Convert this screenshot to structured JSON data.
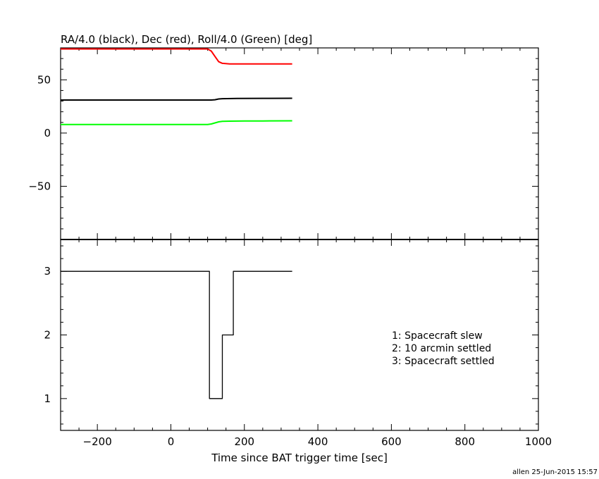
{
  "chart_data": [
    {
      "type": "line",
      "title": "RA/4.0 (black), Dec (red), Roll/4.0 (Green) [deg]",
      "xlim": [
        -300,
        1000
      ],
      "ylim": [
        -100,
        80
      ],
      "yticks": [
        -50,
        0,
        50
      ],
      "series": [
        {
          "color": "#000000",
          "x": [
            -300,
            100,
            110,
            120,
            130,
            140,
            180,
            250,
            330
          ],
          "y": [
            31,
            31,
            31,
            31.3,
            32,
            32.3,
            32.5,
            32.6,
            32.7
          ]
        },
        {
          "color": "#ff0000",
          "x": [
            -300,
            100,
            110,
            120,
            130,
            140,
            160,
            200,
            250,
            330
          ],
          "y": [
            79,
            79,
            77,
            72,
            67,
            65.5,
            65,
            65,
            65,
            65
          ]
        },
        {
          "color": "#00ff00",
          "x": [
            -300,
            100,
            110,
            120,
            130,
            140,
            160,
            200,
            250,
            330
          ],
          "y": [
            8,
            8,
            8.5,
            9.5,
            10.5,
            11,
            11.2,
            11.3,
            11.4,
            11.5
          ]
        }
      ]
    },
    {
      "type": "line",
      "xlabel": "Time since BAT trigger time [sec]",
      "xlim": [
        -300,
        1000
      ],
      "xticks": [
        -200,
        0,
        200,
        400,
        600,
        800,
        1000
      ],
      "ylim": [
        0.5,
        3.5
      ],
      "yticks": [
        1,
        2,
        3
      ],
      "series": [
        {
          "color": "#000000",
          "step": true,
          "x": [
            -300,
            105,
            105,
            140,
            140,
            170,
            170,
            330
          ],
          "y": [
            3,
            3,
            1,
            1,
            2,
            2,
            3,
            3
          ]
        }
      ],
      "annotations": [
        "1: Spacecraft slew",
        "2: 10 arcmin settled",
        "3: Spacecraft settled"
      ]
    }
  ],
  "footer": "allen 25-Jun-2015 15:57"
}
